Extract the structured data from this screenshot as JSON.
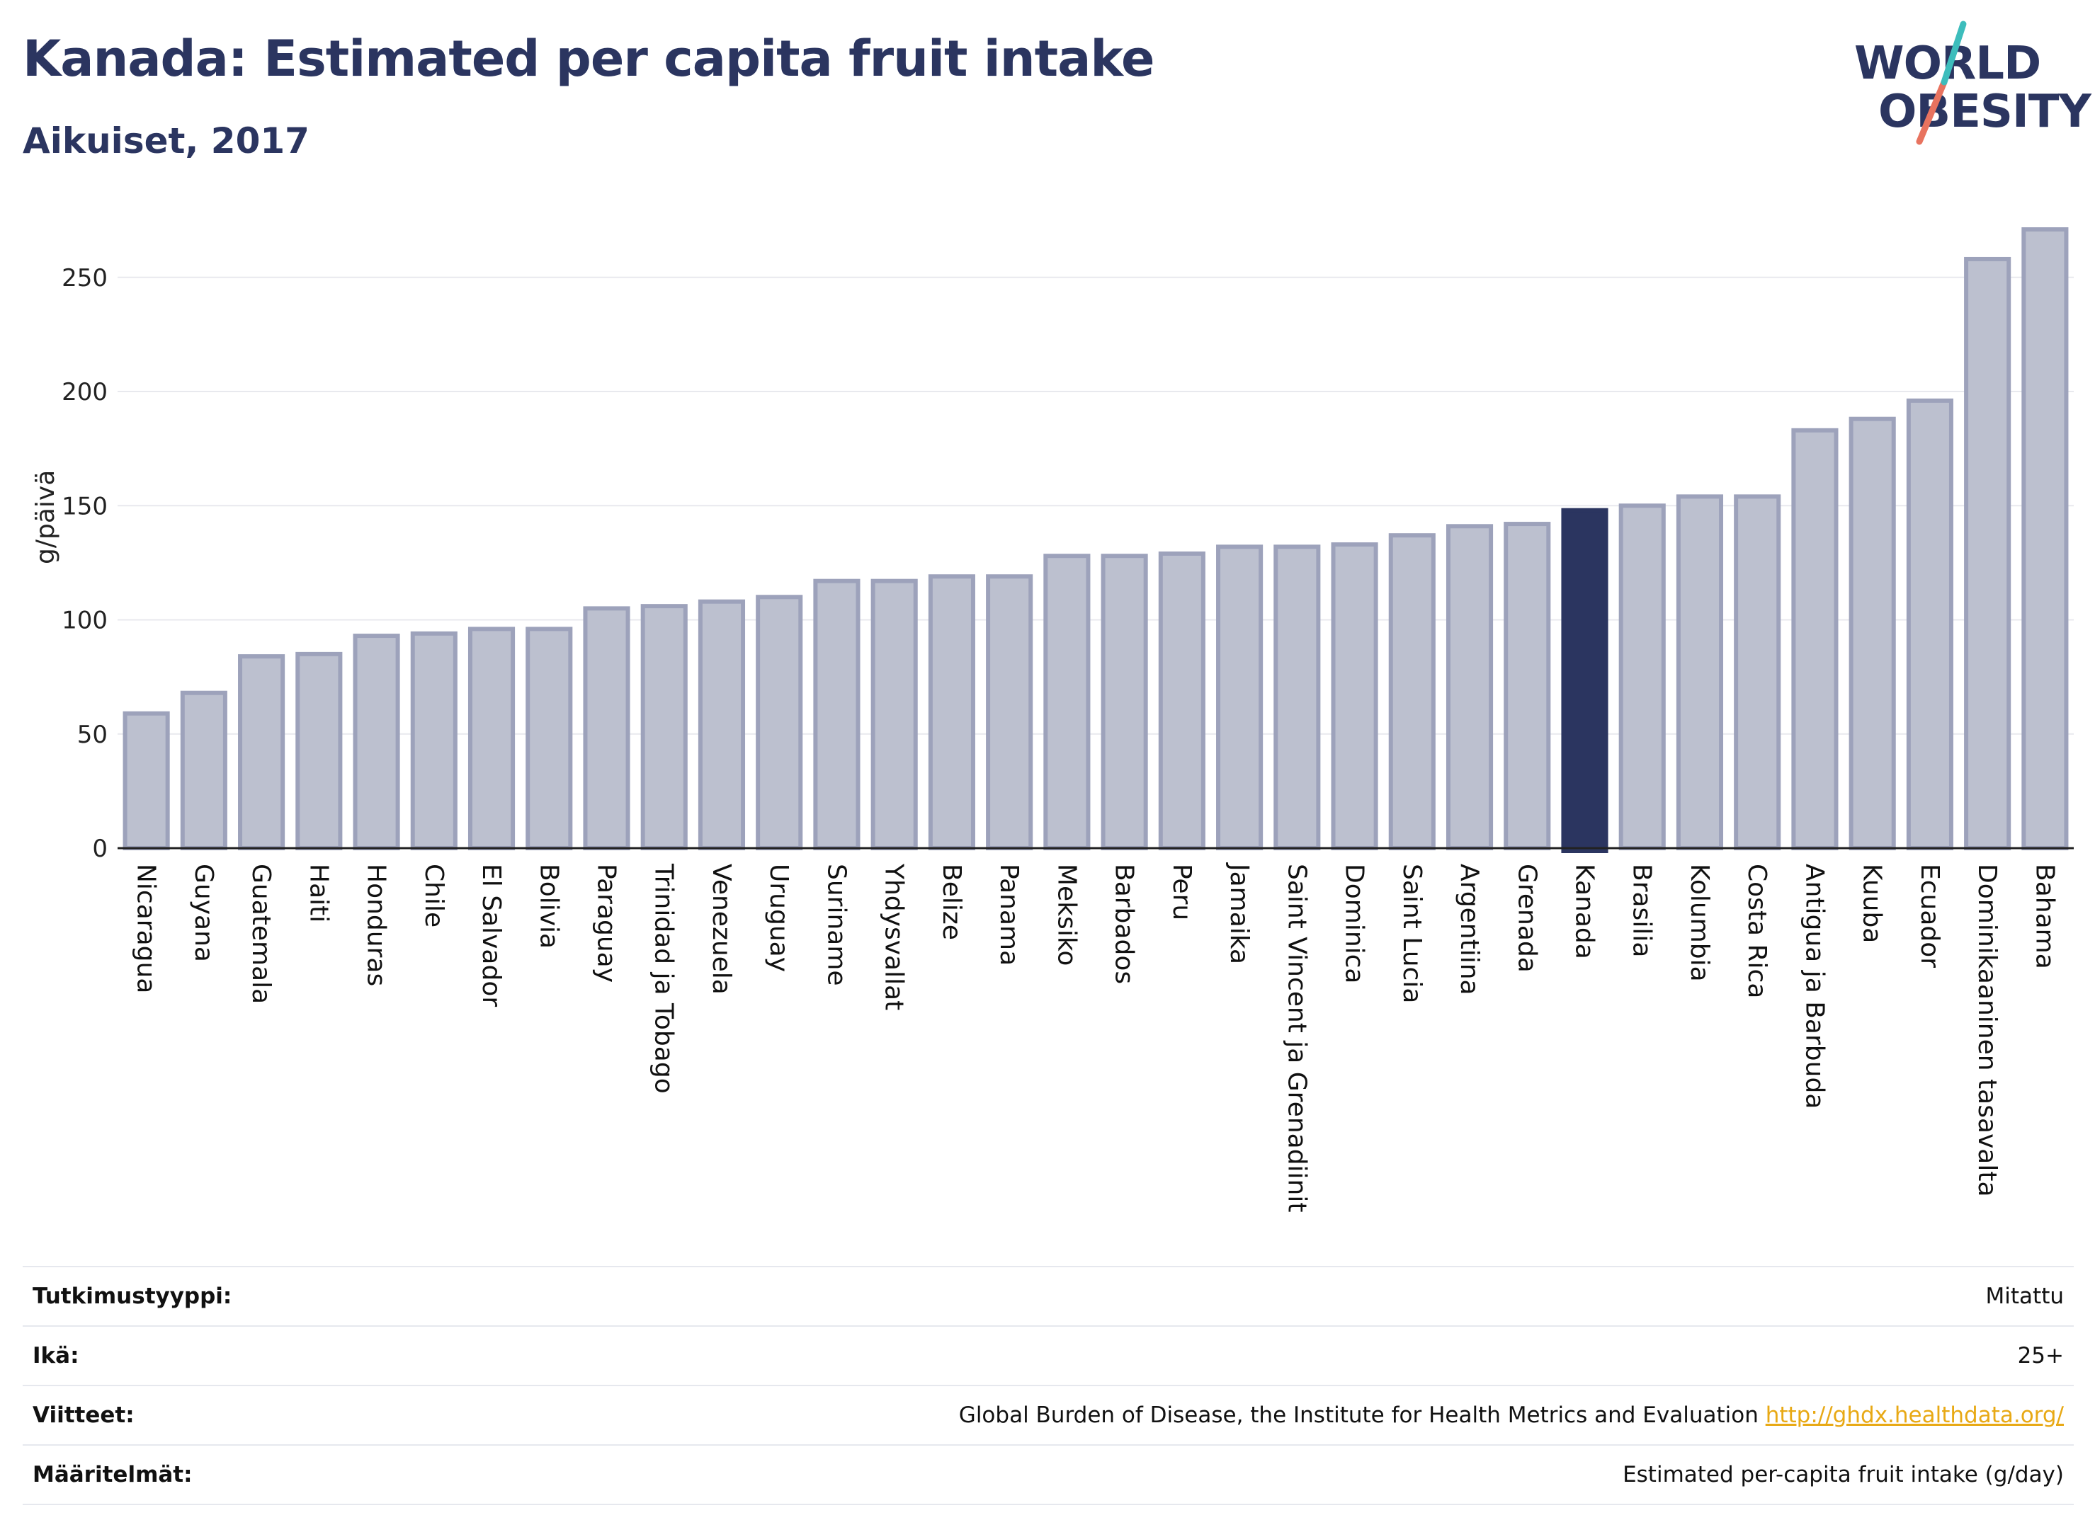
{
  "header": {
    "title": "Kanada: Estimated per capita fruit intake",
    "subtitle": "Aikuiset, 2017"
  },
  "logo": {
    "line1": "WORLD",
    "line2": "OBESITY",
    "icon": "world-obesity-logo"
  },
  "colors": {
    "bar": "#bcc0cf",
    "bar_border": "#9da2bb",
    "highlight": "#2b3560",
    "grid": "#e8e9ee",
    "axis": "#222222",
    "text": "#2b3560",
    "link": "#e8a915"
  },
  "chart_data": {
    "type": "bar",
    "ylabel": "g/päivä",
    "ylim": [
      0,
      280
    ],
    "yticks": [
      0,
      50,
      100,
      150,
      200,
      250
    ],
    "grid": true,
    "highlight_category": "Kanada",
    "categories": [
      "Nicaragua",
      "Guyana",
      "Guatemala",
      "Haiti",
      "Honduras",
      "Chile",
      "El Salvador",
      "Bolivia",
      "Paraguay",
      "Trinidad ja Tobago",
      "Venezuela",
      "Uruguay",
      "Suriname",
      "Yhdysvallat",
      "Belize",
      "Panama",
      "Meksiko",
      "Barbados",
      "Peru",
      "Jamaika",
      "Saint Vincent ja Grenadiinit",
      "Dominica",
      "Saint Lucia",
      "Argentiina",
      "Grenada",
      "Kanada",
      "Brasilia",
      "Kolumbia",
      "Costa Rica",
      "Antigua ja Barbuda",
      "Kuuba",
      "Ecuador",
      "Dominikaaninen tasavalta",
      "Bahama"
    ],
    "values": [
      59,
      68,
      84,
      85,
      93,
      94,
      96,
      96,
      105,
      106,
      108,
      110,
      117,
      117,
      119,
      119,
      128,
      128,
      129,
      132,
      132,
      133,
      137,
      141,
      142,
      148,
      150,
      154,
      154,
      183,
      188,
      196,
      258,
      271
    ]
  },
  "info": [
    {
      "key": "Tutkimustyyppi:",
      "value": "Mitattu"
    },
    {
      "key": "Ikä:",
      "value": "25+"
    },
    {
      "key": "Viitteet:",
      "value": "Global Burden of Disease, the Institute for Health Metrics and Evaluation",
      "link": "http://ghdx.healthdata.org/"
    },
    {
      "key": "Määritelmät:",
      "value": "Estimated per-capita fruit intake (g/day)"
    }
  ]
}
